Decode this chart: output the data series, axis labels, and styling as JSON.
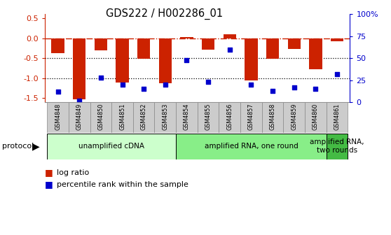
{
  "title": "GDS222 / H002286_01",
  "categories": [
    "GSM4848",
    "GSM4849",
    "GSM4850",
    "GSM4851",
    "GSM4852",
    "GSM4853",
    "GSM4854",
    "GSM4855",
    "GSM4856",
    "GSM4857",
    "GSM4858",
    "GSM4859",
    "GSM4860",
    "GSM4861"
  ],
  "log_ratio": [
    -0.38,
    -1.52,
    -0.3,
    -1.1,
    -0.52,
    -1.13,
    0.02,
    -0.28,
    0.1,
    -1.05,
    -0.52,
    -0.27,
    -0.78,
    -0.07
  ],
  "percentile_rank": [
    12,
    2,
    28,
    20,
    15,
    20,
    48,
    23,
    60,
    20,
    13,
    17,
    15,
    32
  ],
  "bar_color": "#cc2200",
  "dot_color": "#0000cc",
  "ylim_left": [
    -1.6,
    0.6
  ],
  "ylim_right": [
    0,
    100
  ],
  "yticks_left": [
    -1.5,
    -1.0,
    -0.5,
    0.0,
    0.5
  ],
  "yticks_right": [
    0,
    25,
    50,
    75,
    100
  ],
  "yticklabels_right": [
    "0",
    "25",
    "50",
    "75",
    "100%"
  ],
  "dotted_lines": [
    -0.5,
    -1.0
  ],
  "protocols": [
    {
      "label": "unamplified cDNA",
      "start": 0,
      "end": 5,
      "color": "#ccffcc"
    },
    {
      "label": "amplified RNA, one round",
      "start": 6,
      "end": 12,
      "color": "#88ee88"
    },
    {
      "label": "amplified RNA,\ntwo rounds",
      "start": 13,
      "end": 13,
      "color": "#44bb44"
    }
  ],
  "legend_bar_label": "log ratio",
  "legend_dot_label": "percentile rank within the sample",
  "bar_color_hex": "#cc2200",
  "dot_color_hex": "#0000cc",
  "right_axis_color": "#0000cc",
  "background_color": "#ffffff"
}
